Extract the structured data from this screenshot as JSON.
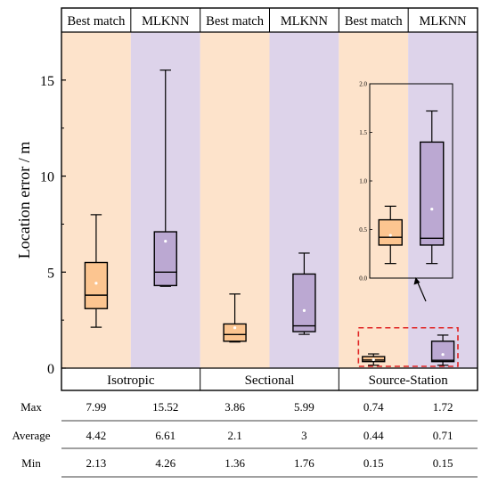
{
  "colors": {
    "best_match_bg": "#fde3cb",
    "mlknn_bg": "#ddd3ea",
    "best_match_box": "#fcc590",
    "mlknn_box": "#bba8d2",
    "zoom_border": "#e02424"
  },
  "chart_data": {
    "type": "box",
    "ylabel": "Location error / m",
    "ylim": [
      0,
      17.5
    ],
    "yticks": [
      0,
      5,
      10,
      15
    ],
    "methods": [
      "Best match",
      "MLKNN"
    ],
    "groups": [
      {
        "name": "Isotropic",
        "boxes": [
          {
            "method": "Best match",
            "min": 2.13,
            "q1": 3.1,
            "median": 3.8,
            "q3": 5.5,
            "max": 7.99,
            "mean": 4.42
          },
          {
            "method": "MLKNN",
            "min": 4.26,
            "q1": 4.3,
            "median": 5.0,
            "q3": 7.1,
            "max": 15.52,
            "mean": 6.61
          }
        ]
      },
      {
        "name": "Sectional",
        "boxes": [
          {
            "method": "Best match",
            "min": 1.36,
            "q1": 1.4,
            "median": 1.75,
            "q3": 2.3,
            "max": 3.86,
            "mean": 2.1
          },
          {
            "method": "MLKNN",
            "min": 1.76,
            "q1": 1.9,
            "median": 2.2,
            "q3": 4.9,
            "max": 5.99,
            "mean": 3.0
          }
        ]
      },
      {
        "name": "Source-Station",
        "boxes": [
          {
            "method": "Best match",
            "min": 0.15,
            "q1": 0.34,
            "median": 0.42,
            "q3": 0.6,
            "max": 0.74,
            "mean": 0.44
          },
          {
            "method": "MLKNN",
            "min": 0.15,
            "q1": 0.34,
            "median": 0.41,
            "q3": 1.4,
            "max": 1.72,
            "mean": 0.71
          }
        ]
      }
    ],
    "inset": {
      "group": "Source-Station",
      "ylim": [
        0,
        2.0
      ],
      "yticks": [
        "0.0",
        "0.5",
        "1.0",
        "1.5",
        "2.0"
      ]
    },
    "table": {
      "row_labels": [
        "Max",
        "Average",
        "Min"
      ],
      "rows": [
        [
          "7.99",
          "15.52",
          "3.86",
          "5.99",
          "0.74",
          "1.72"
        ],
        [
          "4.42",
          "6.61",
          "2.1",
          "3",
          "0.44",
          "0.71"
        ],
        [
          "2.13",
          "4.26",
          "1.36",
          "1.76",
          "0.15",
          "0.15"
        ]
      ]
    }
  }
}
